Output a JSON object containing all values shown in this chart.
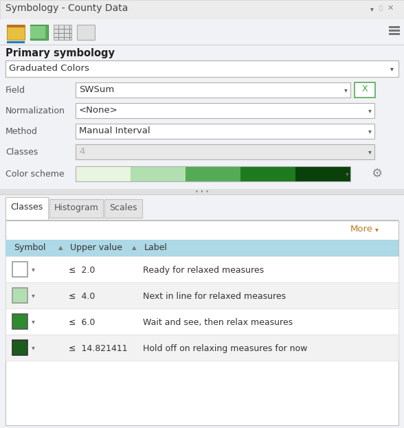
{
  "title": "Symbology - County Data",
  "panel_bg": "#f0f2f5",
  "white": "#ffffff",
  "light_gray": "#e8e8e8",
  "mid_gray": "#d0d0d0",
  "blue_underline": "#1a7abf",
  "primary_symbology_label": "Primary symbology",
  "dropdown_graduated": "Graduated Colors",
  "field_label": "Field",
  "field_value": "SWSum",
  "norm_label": "Normalization",
  "norm_value": "<None>",
  "method_label": "Method",
  "method_value": "Manual Interval",
  "classes_label": "Classes",
  "classes_value": "4",
  "color_scheme_label": "Color scheme",
  "tab_classes": "Classes",
  "tab_histogram": "Histogram",
  "tab_scales": "Scales",
  "more_label": "More",
  "col_symbol": "Symbol",
  "col_upper": "Upper value",
  "col_label": "Label",
  "header_bg": "#add8e6",
  "label_color": "#555555",
  "text_dark": "#333333",
  "orange_label": "#c07820",
  "rows": [
    {
      "symbol_color": "#ffffff",
      "symbol_border": "#999999",
      "upper": "≤  2.0",
      "label": "Ready for relaxed measures"
    },
    {
      "symbol_color": "#b2dfb0",
      "symbol_border": "#999999",
      "upper": "≤  4.0",
      "label": "Next in line for relaxed measures"
    },
    {
      "symbol_color": "#2e8b2e",
      "symbol_border": "#555555",
      "upper": "≤  6.0",
      "label": "Wait and see, then relax measures"
    },
    {
      "symbol_color": "#1a5c1a",
      "symbol_border": "#333333",
      "upper": "≤  14.821411",
      "label": "Hold off on relaxing measures for now"
    }
  ],
  "color_scheme_colors": [
    "#e8f5e0",
    "#b2dfb0",
    "#55aa55",
    "#1e7a1e",
    "#0a400a"
  ],
  "figw": 5.88,
  "figh": 6.23,
  "dpi": 100
}
